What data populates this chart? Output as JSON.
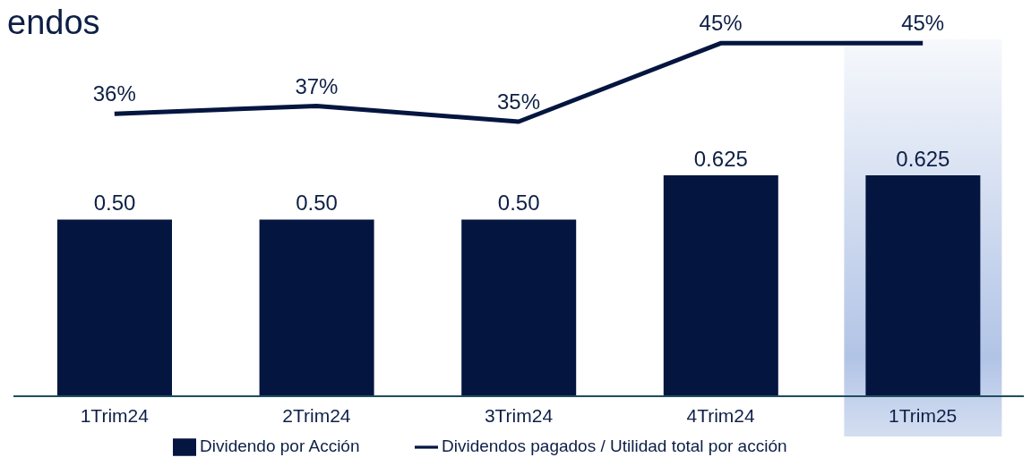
{
  "chart_data": [
    {
      "type": "bar",
      "categories": [
        "1Trim24",
        "2Trim24",
        "3Trim24",
        "4Trim24",
        "1Trim25"
      ],
      "series": [
        {
          "name": "Dividendo por Acción",
          "color": "#041540",
          "values": [
            0.5,
            0.5,
            0.5,
            0.625,
            0.625
          ],
          "value_labels": [
            "0.50",
            "0.50",
            "0.50",
            "0.625",
            "0.625"
          ]
        }
      ],
      "bands": [
        {
          "axis": "x",
          "from": "1Trim25",
          "to": "1Trim25",
          "color": "#a9bde3"
        }
      ],
      "legend": "bottom"
    },
    {
      "type": "line",
      "title": "endos",
      "categories": [
        null,
        null,
        null,
        null,
        null
      ],
      "series": [
        {
          "name": "Dividendos pagados / Utilidad total por acción",
          "color": "#041540",
          "values": [
            36,
            37,
            35,
            45,
            45
          ],
          "value_labels": [
            "36%",
            "37%",
            "35%",
            "45%",
            "45%"
          ]
        }
      ],
      "legend": "bottom",
      "marker": "none"
    }
  ]
}
